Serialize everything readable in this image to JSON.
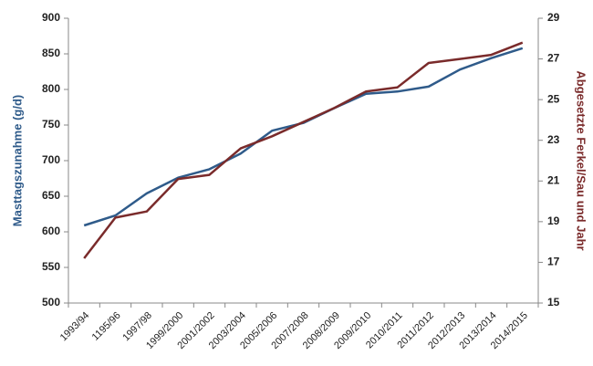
{
  "chart_data": {
    "type": "line",
    "categories": [
      "1993/94",
      "1195/96",
      "1997/98",
      "1999/2000",
      "2001/2002",
      "2003/2004",
      "2005/2006",
      "2007/2008",
      "2008/2009",
      "2009/2010",
      "2010/2011",
      "2011/2012",
      "2012/2013",
      "2013/2014",
      "2014/2015"
    ],
    "ylabel": "Masttagszunahme (g/d)",
    "y2label": "Abgesetzte Ferkel/Sau und Jahr",
    "ylim": [
      500,
      900
    ],
    "yticks": [
      500,
      550,
      600,
      650,
      700,
      750,
      800,
      850,
      900
    ],
    "y2lim": [
      15,
      29
    ],
    "y2ticks": [
      15,
      17,
      19,
      21,
      23,
      25,
      27,
      29
    ],
    "series": [
      {
        "color": "#2f5b8a",
        "values": [
          609,
          623,
          654,
          676,
          688,
          710,
          742,
          753,
          774,
          794,
          797,
          804,
          828,
          844,
          858
        ]
      },
      {
        "color": "#7a2b2b",
        "axis": "y2",
        "values": [
          17.2,
          19.2,
          19.5,
          21.1,
          21.3,
          22.6,
          23.2,
          23.9,
          24.6,
          25.4,
          25.6,
          26.8,
          27.0,
          27.2,
          27.8
        ]
      }
    ]
  }
}
